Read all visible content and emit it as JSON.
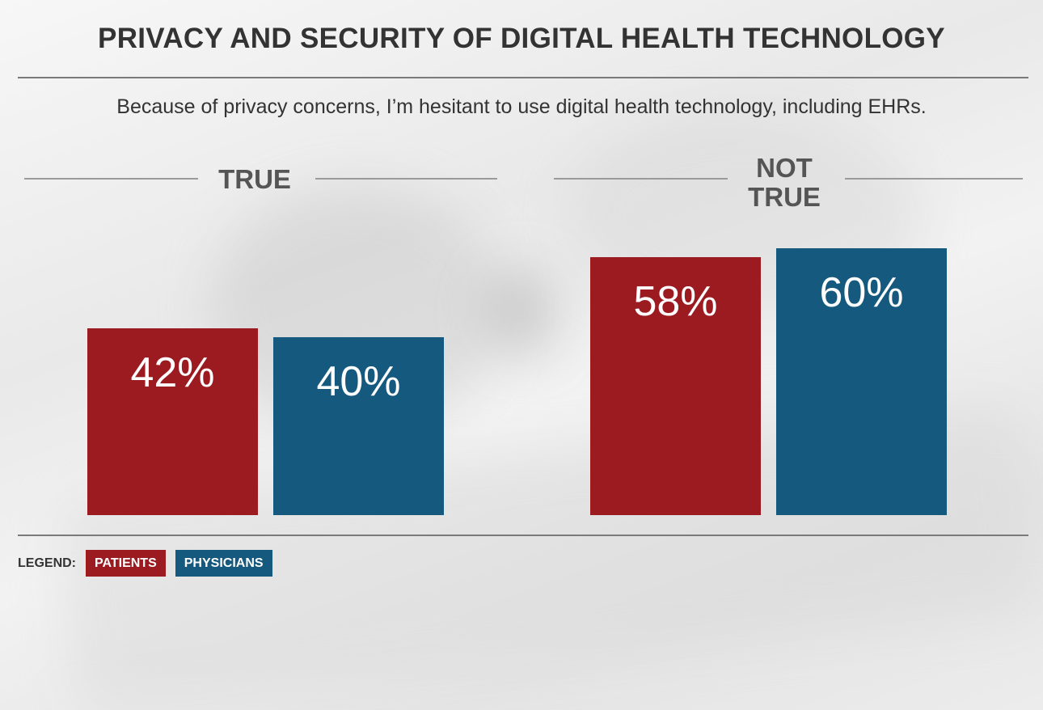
{
  "chart_data": {
    "type": "bar",
    "title": "PRIVACY AND SECURITY OF DIGITAL HEALTH TECHNOLOGY",
    "subtitle": "Because of privacy concerns, I’m hesitant to use digital health technology, including EHRs.",
    "categories": [
      "TRUE",
      "NOT TRUE"
    ],
    "category_lines": [
      [
        "TRUE"
      ],
      [
        "NOT",
        "TRUE"
      ]
    ],
    "series": [
      {
        "name": "PATIENTS",
        "values": [
          42,
          58
        ],
        "labels": [
          "42%",
          "58%"
        ],
        "color": "#9b1b21"
      },
      {
        "name": "PHYSICIANS",
        "values": [
          40,
          60
        ],
        "labels": [
          "40%",
          "60%"
        ],
        "color": "#155a7e"
      }
    ],
    "ylim": [
      0,
      100
    ],
    "legend": {
      "title": "LEGEND:",
      "placement": "bottom-left"
    },
    "grid": false
  }
}
